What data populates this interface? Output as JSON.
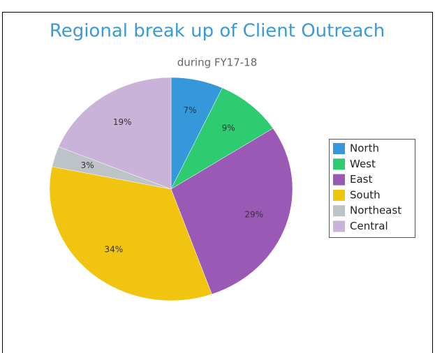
{
  "chart_data": {
    "type": "pie",
    "title": "Regional break up of Client Outreach",
    "subtitle": "during FY17-18",
    "categories": [
      "North",
      "West",
      "East",
      "South",
      "Northeast",
      "Central"
    ],
    "values": [
      7,
      9,
      29,
      34,
      3,
      19
    ],
    "value_labels": [
      "7%",
      "9%",
      "29%",
      "34%",
      "3%",
      "19%"
    ],
    "colors": [
      "#3498db",
      "#2ecc71",
      "#9b59b6",
      "#f1c40f",
      "#bdc3c7",
      "#c9b3d9"
    ],
    "legend": "right"
  }
}
